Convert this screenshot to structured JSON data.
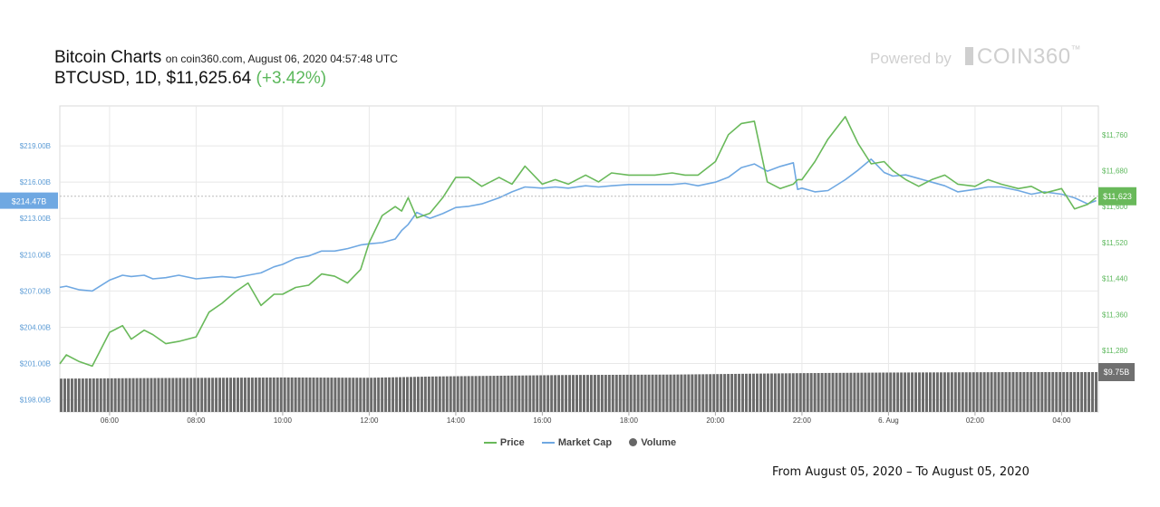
{
  "header": {
    "title": "Bitcoin Charts",
    "subtitle": "on coin360.com, August 06, 2020 04:57:48 UTC",
    "pair": "BTCUSD",
    "interval": "1D",
    "price": "$11,625.64",
    "change": "(+3.42%)"
  },
  "branding": {
    "powered": "Powered by",
    "name": "COIN360",
    "tm": "™"
  },
  "footer": {
    "range": "From August 05, 2020 – To August 05, 2020"
  },
  "colors": {
    "price": "#69b95a",
    "market_cap": "#6fa8e2",
    "volume": "#6b6b6b",
    "grid": "#e8e8e8"
  },
  "chart_data": {
    "type": "line",
    "legend": [
      "Price",
      "Market Cap",
      "Volume"
    ],
    "legend_position": "bottom-center",
    "grid": true,
    "x_ticks": [
      "06:00",
      "08:00",
      "10:00",
      "12:00",
      "14:00",
      "16:00",
      "18:00",
      "20:00",
      "22:00",
      "6. Aug",
      "02:00",
      "04:00"
    ],
    "left_axis": {
      "ticks": [
        "$198.00B",
        "$201.00B",
        "$204.00B",
        "$207.00B",
        "$210.00B",
        "$213.00B",
        "$216.00B",
        "$219.00B"
      ],
      "ylim": [
        197,
        222.3
      ],
      "current_label": "$214.47B",
      "current_value": 214.47
    },
    "right_axis": {
      "ticks": [
        "$11,280",
        "$11,360",
        "$11,440",
        "$11,520",
        "$11,600",
        "$11,680",
        "$11,760"
      ],
      "ylim": [
        11143,
        11824
      ],
      "current_label": "$11,623",
      "current_value": 11623,
      "volume_label": "$9.75B"
    },
    "x_hours": [
      4.85,
      28.85
    ],
    "series": [
      {
        "name": "Price",
        "x": [
          4.85,
          5.0,
          5.3,
          5.6,
          6.0,
          6.3,
          6.5,
          6.8,
          7.0,
          7.3,
          7.6,
          8.0,
          8.3,
          8.6,
          8.9,
          9.2,
          9.5,
          9.8,
          10.0,
          10.3,
          10.6,
          10.9,
          11.2,
          11.5,
          11.8,
          12.0,
          12.3,
          12.6,
          12.75,
          12.9,
          13.1,
          13.4,
          13.7,
          14.0,
          14.3,
          14.6,
          15.0,
          15.3,
          15.6,
          16.0,
          16.3,
          16.6,
          17.0,
          17.3,
          17.6,
          18.0,
          18.3,
          18.6,
          19.0,
          19.3,
          19.6,
          20.0,
          20.3,
          20.6,
          20.9,
          21.2,
          21.5,
          21.8,
          21.9,
          22.0,
          22.3,
          22.6,
          23.0,
          23.3,
          23.6,
          23.9,
          24.1,
          24.4,
          24.7,
          25.0,
          25.3,
          25.6,
          26.0,
          26.3,
          26.6,
          27.0,
          27.3,
          27.6,
          28.0,
          28.3,
          28.6,
          28.8
        ],
        "values": [
          11250,
          11270,
          11255,
          11245,
          11320,
          11335,
          11305,
          11325,
          11315,
          11295,
          11300,
          11310,
          11365,
          11385,
          11410,
          11430,
          11380,
          11405,
          11405,
          11420,
          11425,
          11450,
          11445,
          11430,
          11460,
          11520,
          11580,
          11600,
          11590,
          11620,
          11575,
          11585,
          11620,
          11665,
          11665,
          11645,
          11665,
          11650,
          11690,
          11650,
          11660,
          11650,
          11670,
          11655,
          11675,
          11670,
          11670,
          11670,
          11675,
          11670,
          11670,
          11700,
          11760,
          11785,
          11790,
          11655,
          11640,
          11650,
          11660,
          11660,
          11700,
          11750,
          11800,
          11740,
          11695,
          11700,
          11680,
          11660,
          11645,
          11660,
          11670,
          11650,
          11645,
          11660,
          11650,
          11640,
          11645,
          11630,
          11640,
          11595,
          11605,
          11620
        ]
      },
      {
        "name": "Market Cap",
        "x": [
          4.85,
          5.0,
          5.3,
          5.6,
          6.0,
          6.3,
          6.5,
          6.8,
          7.0,
          7.3,
          7.6,
          8.0,
          8.3,
          8.6,
          8.9,
          9.2,
          9.5,
          9.8,
          10.0,
          10.3,
          10.6,
          10.9,
          11.2,
          11.5,
          11.8,
          12.0,
          12.3,
          12.6,
          12.75,
          12.9,
          13.1,
          13.4,
          13.7,
          14.0,
          14.3,
          14.6,
          15.0,
          15.3,
          15.6,
          16.0,
          16.3,
          16.6,
          17.0,
          17.3,
          17.6,
          18.0,
          18.3,
          18.6,
          19.0,
          19.3,
          19.6,
          20.0,
          20.3,
          20.6,
          20.9,
          21.2,
          21.5,
          21.8,
          21.9,
          22.0,
          22.3,
          22.6,
          23.0,
          23.3,
          23.6,
          23.9,
          24.1,
          24.4,
          24.7,
          25.0,
          25.3,
          25.6,
          26.0,
          26.3,
          26.6,
          27.0,
          27.3,
          27.6,
          28.0,
          28.3,
          28.6,
          28.8
        ],
        "values": [
          207.3,
          207.4,
          207.1,
          207.0,
          207.9,
          208.3,
          208.2,
          208.3,
          208.0,
          208.1,
          208.3,
          208.0,
          208.1,
          208.2,
          208.1,
          208.3,
          208.5,
          209.0,
          209.2,
          209.7,
          209.9,
          210.3,
          210.3,
          210.5,
          210.8,
          210.9,
          211.0,
          211.3,
          212.0,
          212.5,
          213.5,
          213.0,
          213.4,
          213.9,
          214.0,
          214.2,
          214.7,
          215.2,
          215.6,
          215.5,
          215.6,
          215.5,
          215.7,
          215.6,
          215.7,
          215.8,
          215.8,
          215.8,
          215.8,
          215.9,
          215.7,
          216.0,
          216.4,
          217.2,
          217.5,
          216.9,
          217.3,
          217.6,
          215.4,
          215.5,
          215.2,
          215.3,
          216.2,
          217.0,
          217.9,
          216.8,
          216.5,
          216.6,
          216.3,
          216.0,
          215.7,
          215.2,
          215.4,
          215.6,
          215.6,
          215.3,
          215.0,
          215.2,
          215.0,
          214.7,
          214.2,
          214.47
        ]
      },
      {
        "name": "Volume",
        "x": [
          4.85,
          7.0,
          10.0,
          12.0,
          13.5,
          15.0,
          16.5,
          19.0,
          22.0,
          24.0,
          27.0,
          28.8
        ],
        "values": [
          9.3,
          9.34,
          9.38,
          9.36,
          9.45,
          9.5,
          9.55,
          9.58,
          9.68,
          9.72,
          9.75,
          9.75
        ]
      }
    ]
  }
}
